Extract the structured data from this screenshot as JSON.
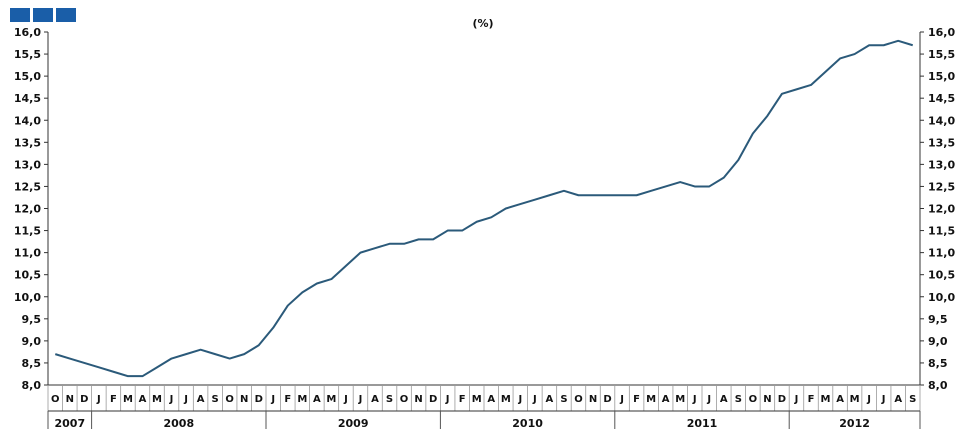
{
  "header": {
    "unit_label": "(%)",
    "logo_color": "#1a5ea8"
  },
  "chart_data": {
    "type": "line",
    "ylim": [
      8.0,
      16.0
    ],
    "ytick_step": 0.5,
    "yticks": [
      "8,0",
      "8,5",
      "9,0",
      "9,5",
      "10,0",
      "10,5",
      "11,0",
      "11,5",
      "12,0",
      "12,5",
      "13,0",
      "13,5",
      "14,0",
      "14,5",
      "15,0",
      "15,5",
      "16,0"
    ],
    "grid": false,
    "line_color": "#2b5a7a",
    "months": [
      "O",
      "N",
      "D",
      "J",
      "F",
      "M",
      "A",
      "M",
      "J",
      "J",
      "A",
      "S",
      "O",
      "N",
      "D",
      "J",
      "F",
      "M",
      "A",
      "M",
      "J",
      "J",
      "A",
      "S",
      "O",
      "N",
      "D",
      "J",
      "F",
      "M",
      "A",
      "M",
      "J",
      "J",
      "A",
      "S",
      "O",
      "N",
      "D",
      "J",
      "F",
      "M",
      "A",
      "M",
      "J",
      "J",
      "A",
      "S",
      "O",
      "N",
      "D",
      "J",
      "F",
      "M",
      "A",
      "M",
      "J",
      "J",
      "A",
      "S"
    ],
    "years": [
      {
        "label": "2007",
        "start": 0,
        "end": 3
      },
      {
        "label": "2008",
        "start": 3,
        "end": 15
      },
      {
        "label": "2009",
        "start": 15,
        "end": 27
      },
      {
        "label": "2010",
        "start": 27,
        "end": 39
      },
      {
        "label": "2011",
        "start": 39,
        "end": 51
      },
      {
        "label": "2012",
        "start": 51,
        "end": 60
      }
    ],
    "values": [
      8.7,
      8.6,
      8.5,
      8.4,
      8.3,
      8.2,
      8.2,
      8.4,
      8.6,
      8.7,
      8.8,
      8.7,
      8.6,
      8.7,
      8.9,
      9.3,
      9.8,
      10.1,
      10.3,
      10.4,
      10.7,
      11.0,
      11.1,
      11.2,
      11.2,
      11.3,
      11.3,
      11.5,
      11.5,
      11.7,
      11.8,
      12.0,
      12.1,
      12.2,
      12.3,
      12.4,
      12.3,
      12.3,
      12.3,
      12.3,
      12.3,
      12.4,
      12.5,
      12.6,
      12.5,
      12.5,
      12.7,
      13.1,
      13.7,
      14.1,
      14.6,
      14.7,
      14.8,
      15.1,
      15.4,
      15.5,
      15.7,
      15.7,
      15.8,
      15.7
    ]
  }
}
